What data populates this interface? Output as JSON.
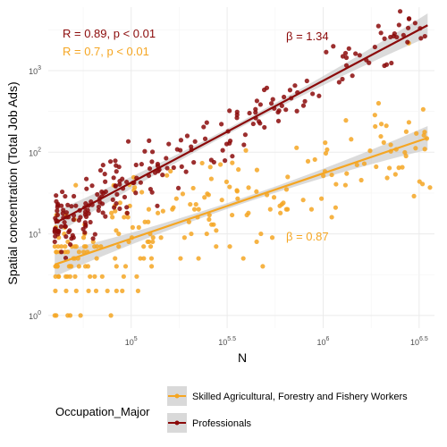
{
  "chart_data": {
    "type": "scatter",
    "title": "",
    "xlabel": "N",
    "ylabel": "Spatial concentration (Total Job Ads)",
    "x_scale": "log10",
    "y_scale": "log10",
    "xlim": [
      37000,
      3800000
    ],
    "ylim": [
      0.7,
      6000
    ],
    "grid": true,
    "legend_position": "bottom",
    "x_ticks": [
      {
        "value": 100000,
        "base": "10",
        "exp": "5"
      },
      {
        "value": 316228,
        "base": "10",
        "exp": "5.5"
      },
      {
        "value": 1000000,
        "base": "10",
        "exp": "6"
      },
      {
        "value": 3162278,
        "base": "10",
        "exp": "6.5"
      }
    ],
    "y_ticks": [
      {
        "value": 1,
        "base": "10",
        "exp": "0"
      },
      {
        "value": 10,
        "base": "10",
        "exp": "1"
      },
      {
        "value": 100,
        "base": "10",
        "exp": "2"
      },
      {
        "value": 1000,
        "base": "10",
        "exp": "3"
      }
    ],
    "legend_title": "Occupation_Major",
    "series": [
      {
        "name": "Skilled Agricultural, Forestry and Fishery Workers",
        "color": "#f5a623",
        "n_points": 230,
        "seed": 7,
        "fit": {
          "x0": 40000,
          "y0": 4.2,
          "x1": 3500000,
          "y1": 150
        },
        "scatter_sd": 0.33,
        "stat_r": "R = 0.7, p < 0.01",
        "beta": "β = 0.87",
        "extra_points": [
          [
            40000,
            1
          ],
          [
            3600000,
            37
          ],
          [
            2700000,
            90
          ],
          [
            1500000,
            70
          ]
        ]
      },
      {
        "name": "Professionals",
        "color": "#8b0a0a",
        "n_points": 230,
        "seed": 19,
        "fit": {
          "x0": 40000,
          "y0": 13.5,
          "x1": 3500000,
          "y1": 3600
        },
        "scatter_sd": 0.2,
        "stat_r": "R = 0.89, p < 0.01",
        "beta": "β = 1.34",
        "extra_points": [
          [
            2800000,
            4300
          ],
          [
            3200000,
            3300
          ],
          [
            2000000,
            2900
          ],
          [
            40000,
            8
          ]
        ]
      }
    ]
  }
}
